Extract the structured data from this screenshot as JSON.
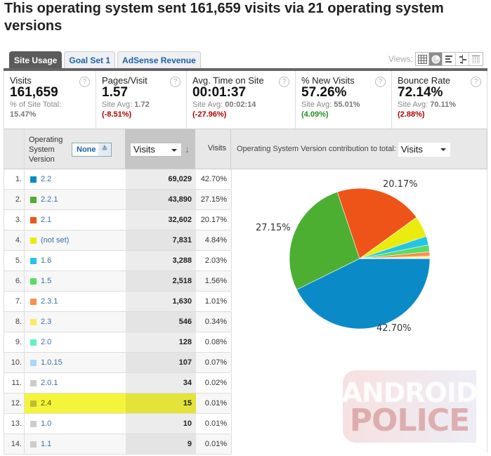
{
  "title": "This operating system sent 161,659 visits via 21 operating system versions",
  "tabs": [
    {
      "label": "Site Usage",
      "active": true
    },
    {
      "label": "Goal Set 1",
      "active": false
    },
    {
      "label": "AdSense Revenue",
      "active": false
    }
  ],
  "views": {
    "label": "Views:",
    "buttons": [
      "table-view",
      "pie-view",
      "performance-view",
      "comparison-view",
      "pivot-view"
    ],
    "active": "pie-view"
  },
  "metrics": [
    {
      "label": "Visits",
      "value": "161,659",
      "sub_label": "% of Site Total:",
      "sub_value": "15.47%",
      "delta": "",
      "delta_color": ""
    },
    {
      "label": "Pages/Visit",
      "value": "1.57",
      "sub_label": "Site Avg:",
      "sub_value": "1.72",
      "delta": "(-8.51%)",
      "delta_color": "#b30000"
    },
    {
      "label": "Avg. Time on Site",
      "value": "00:01:37",
      "sub_label": "Site Avg:",
      "sub_value": "00:02:14",
      "delta": "(-27.96%)",
      "delta_color": "#b30000"
    },
    {
      "label": "% New Visits",
      "value": "57.26%",
      "sub_label": "Site Avg:",
      "sub_value": "55.01%",
      "delta": "(4.09%)",
      "delta_color": "#1f8f1f"
    },
    {
      "label": "Bounce Rate",
      "value": "72.14%",
      "sub_label": "Site Avg:",
      "sub_value": "70.11%",
      "delta": "(2.88%)",
      "delta_color": "#b30000"
    }
  ],
  "table_header": {
    "dimension_label_lines": [
      "Operating",
      "System",
      "Version"
    ],
    "secondary_dimension": "None",
    "sort_metric": "Visits",
    "pct_column": "Visits",
    "contribution_label": "Operating System Version contribution to total:",
    "contribution_metric": "Visits"
  },
  "rows": [
    {
      "rank": "1.",
      "name": "2.2",
      "visits": "69,029",
      "pct": "42.70%",
      "color": "#0a8bc8"
    },
    {
      "rank": "2.",
      "name": "2.2.1",
      "visits": "43,890",
      "pct": "27.15%",
      "color": "#4caf32"
    },
    {
      "rank": "3.",
      "name": "2.1",
      "visits": "32,602",
      "pct": "20.17%",
      "color": "#ee5418"
    },
    {
      "rank": "4.",
      "name": "(not set)",
      "visits": "7,831",
      "pct": "4.84%",
      "color": "#eaec0e"
    },
    {
      "rank": "5.",
      "name": "1.6",
      "visits": "3,288",
      "pct": "2.03%",
      "color": "#26c4e4"
    },
    {
      "rank": "6.",
      "name": "1.5",
      "visits": "2,518",
      "pct": "1.56%",
      "color": "#5adc64"
    },
    {
      "rank": "7.",
      "name": "2.3.1",
      "visits": "1,630",
      "pct": "1.01%",
      "color": "#f8904e"
    },
    {
      "rank": "8.",
      "name": "2.3",
      "visits": "546",
      "pct": "0.34%",
      "color": "#fcea5c"
    },
    {
      "rank": "9.",
      "name": "2.0",
      "visits": "128",
      "pct": "0.08%",
      "color": "#68eec0"
    },
    {
      "rank": "10.",
      "name": "1.0.15",
      "visits": "107",
      "pct": "0.07%",
      "color": "#aad8f8"
    },
    {
      "rank": "11.",
      "name": "2.0.1",
      "visits": "34",
      "pct": "0.02%",
      "color": "#cccccc"
    },
    {
      "rank": "12.",
      "name": "2.4",
      "visits": "15",
      "pct": "0.01%",
      "color": "#bdbd36",
      "highlighted": true
    },
    {
      "rank": "13.",
      "name": "1.0",
      "visits": "10",
      "pct": "0.01%",
      "color": "#cccccc"
    },
    {
      "rank": "14.",
      "name": "1.1",
      "visits": "9",
      "pct": "0.01%",
      "color": "#cccccc"
    }
  ],
  "chart_data": {
    "type": "pie",
    "title": "Operating System Version contribution to total: Visits",
    "categories": [
      "2.2",
      "2.2.1",
      "2.1",
      "(not set)",
      "1.6",
      "1.5",
      "2.3.1",
      "2.3",
      "2.0",
      "1.0.15",
      "2.0.1",
      "2.4",
      "1.0",
      "1.1"
    ],
    "values": [
      42.7,
      27.15,
      20.17,
      4.84,
      2.03,
      1.56,
      1.01,
      0.34,
      0.08,
      0.07,
      0.02,
      0.01,
      0.01,
      0.01
    ],
    "colors": [
      "#0a8bc8",
      "#4caf32",
      "#ee5418",
      "#eaec0e",
      "#26c4e4",
      "#5adc64",
      "#f8904e",
      "#fcea5c",
      "#68eec0",
      "#aad8f8",
      "#cccccc",
      "#bdbd36",
      "#cccccc",
      "#cccccc"
    ],
    "labels_shown": [
      "42.70%",
      "27.15%",
      "20.17%"
    ]
  },
  "watermark": {
    "line1": "ANDROID",
    "line2": "POLICE"
  }
}
